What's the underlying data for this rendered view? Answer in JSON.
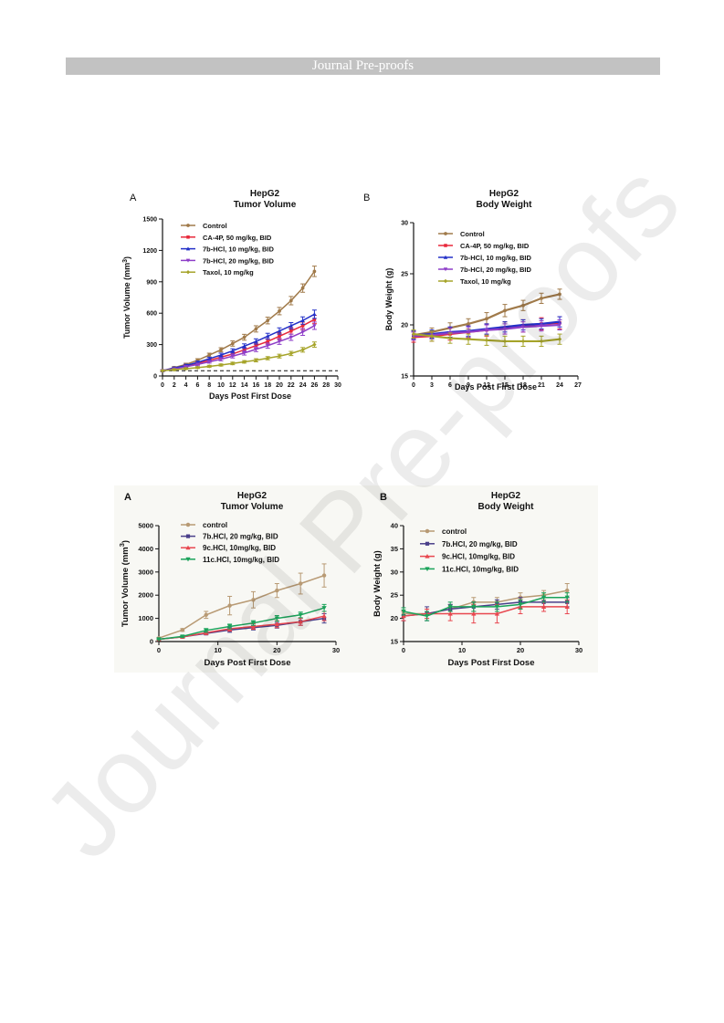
{
  "header": {
    "title": "Journal Pre-proofs"
  },
  "watermark": {
    "text": "Journal Pre-proofs"
  },
  "colors": {
    "header_bg": "#c2c2c2"
  },
  "chart_data": [
    {
      "id": "p1",
      "type": "line",
      "panel_letter": "A",
      "title": "HepG2",
      "subtitle": "Tumor Volume",
      "xlabel": "Days Post First Dose",
      "ylabel": "Tumor Volume (mm",
      "ylabel_sup": "3",
      "ylabel_end": ")",
      "xlim": [
        0,
        30
      ],
      "ylim": [
        0,
        1500
      ],
      "xticks": [
        0,
        2,
        4,
        6,
        8,
        10,
        12,
        14,
        16,
        18,
        20,
        22,
        24,
        26,
        28,
        30
      ],
      "yticks": [
        0,
        300,
        600,
        900,
        1200,
        1500
      ],
      "baseline": 50,
      "series": [
        {
          "name": "Control",
          "color": "#a07a4a",
          "marker": "circle",
          "x": [
            0,
            2,
            4,
            6,
            8,
            10,
            12,
            14,
            16,
            18,
            20,
            22,
            24,
            26
          ],
          "y": [
            50,
            80,
            110,
            150,
            200,
            250,
            310,
            370,
            450,
            530,
            620,
            720,
            840,
            1000
          ],
          "err": [
            8,
            10,
            12,
            15,
            18,
            20,
            25,
            28,
            30,
            32,
            35,
            40,
            40,
            50
          ]
        },
        {
          "name": "CA-4P, 50 mg/kg, BID",
          "color": "#e8283a",
          "marker": "square",
          "x": [
            0,
            2,
            4,
            6,
            8,
            10,
            12,
            14,
            16,
            18,
            20,
            22,
            24,
            26
          ],
          "y": [
            50,
            70,
            95,
            120,
            150,
            180,
            210,
            250,
            290,
            330,
            380,
            430,
            480,
            540
          ],
          "err": [
            8,
            10,
            12,
            12,
            15,
            15,
            20,
            22,
            25,
            25,
            30,
            30,
            35,
            40
          ]
        },
        {
          "name": "7b-HCl, 10 mg/kg, BID",
          "color": "#2330c8",
          "marker": "triangle",
          "x": [
            0,
            2,
            4,
            6,
            8,
            10,
            12,
            14,
            16,
            18,
            20,
            22,
            24,
            26
          ],
          "y": [
            50,
            75,
            100,
            130,
            165,
            200,
            240,
            285,
            330,
            380,
            430,
            480,
            530,
            590
          ],
          "err": [
            8,
            10,
            12,
            12,
            15,
            18,
            20,
            22,
            25,
            28,
            30,
            30,
            35,
            40
          ]
        },
        {
          "name": "7b-HCl, 20 mg/kg, BID",
          "color": "#8e3ec8",
          "marker": "triangle-down",
          "x": [
            0,
            2,
            4,
            6,
            8,
            10,
            12,
            14,
            16,
            18,
            20,
            22,
            24,
            26
          ],
          "y": [
            50,
            68,
            88,
            110,
            135,
            160,
            190,
            220,
            255,
            290,
            330,
            370,
            420,
            480
          ],
          "err": [
            8,
            10,
            10,
            12,
            12,
            15,
            18,
            20,
            22,
            25,
            28,
            30,
            32,
            35
          ]
        },
        {
          "name": "Taxol, 10 mg/kg",
          "color": "#a6a42a",
          "marker": "diamond",
          "x": [
            0,
            2,
            4,
            6,
            8,
            10,
            12,
            14,
            16,
            18,
            20,
            22,
            24,
            26
          ],
          "y": [
            50,
            60,
            70,
            80,
            92,
            105,
            120,
            135,
            150,
            170,
            190,
            215,
            250,
            300
          ],
          "err": [
            5,
            8,
            8,
            8,
            10,
            10,
            12,
            12,
            15,
            15,
            18,
            20,
            22,
            25
          ]
        }
      ]
    },
    {
      "id": "p2",
      "type": "line",
      "panel_letter": "B",
      "title": "HepG2",
      "subtitle": "Body Weight",
      "xlabel": "Days Post First Dose",
      "ylabel": "Body Weight (g)",
      "xlim": [
        0,
        27
      ],
      "ylim": [
        15,
        30
      ],
      "xticks": [
        0,
        3,
        6,
        9,
        12,
        15,
        18,
        21,
        24,
        27
      ],
      "yticks": [
        15,
        20,
        25,
        30
      ],
      "series": [
        {
          "name": "Control",
          "color": "#a07a4a",
          "marker": "circle",
          "x": [
            0,
            3,
            6,
            9,
            12,
            15,
            18,
            21,
            24
          ],
          "y": [
            19,
            19.3,
            19.7,
            20.1,
            20.6,
            21.4,
            21.9,
            22.6,
            23
          ],
          "err": [
            0.4,
            0.4,
            0.5,
            0.5,
            0.6,
            0.6,
            0.5,
            0.5,
            0.5
          ]
        },
        {
          "name": "CA-4P, 50 mg/kg, BID",
          "color": "#e8283a",
          "marker": "square",
          "x": [
            0,
            3,
            6,
            9,
            12,
            15,
            18,
            21,
            24
          ],
          "y": [
            18.8,
            18.9,
            19.1,
            19.3,
            19.5,
            19.7,
            19.9,
            20.1,
            20.2
          ],
          "err": [
            0.5,
            0.5,
            0.6,
            0.6,
            0.6,
            0.6,
            0.6,
            0.6,
            0.6
          ]
        },
        {
          "name": "7b-HCl, 10 mg/kg, BID",
          "color": "#2330c8",
          "marker": "triangle",
          "x": [
            0,
            3,
            6,
            9,
            12,
            15,
            18,
            21,
            24
          ],
          "y": [
            19,
            19.1,
            19.3,
            19.4,
            19.6,
            19.8,
            20,
            20.1,
            20.3
          ],
          "err": [
            0.4,
            0.4,
            0.5,
            0.5,
            0.5,
            0.5,
            0.5,
            0.5,
            0.5
          ]
        },
        {
          "name": "7b-HCl, 20 mg/kg, BID",
          "color": "#8e3ec8",
          "marker": "triangle-down",
          "x": [
            0,
            3,
            6,
            9,
            12,
            15,
            18,
            21,
            24
          ],
          "y": [
            18.9,
            19,
            19.2,
            19.3,
            19.5,
            19.6,
            19.8,
            19.9,
            20
          ],
          "err": [
            0.4,
            0.4,
            0.5,
            0.5,
            0.5,
            0.5,
            0.5,
            0.5,
            0.5
          ]
        },
        {
          "name": "Taxol, 10 mg/kg",
          "color": "#a6a42a",
          "marker": "diamond",
          "x": [
            0,
            3,
            6,
            9,
            12,
            15,
            18,
            21,
            24
          ],
          "y": [
            19.1,
            18.9,
            18.7,
            18.6,
            18.5,
            18.4,
            18.4,
            18.4,
            18.6
          ],
          "err": [
            0.4,
            0.5,
            0.5,
            0.5,
            0.5,
            0.5,
            0.5,
            0.5,
            0.5
          ]
        }
      ]
    },
    {
      "id": "p3",
      "type": "line",
      "panel_letter": "A",
      "title": "HepG2",
      "subtitle": "Tumor  Volume",
      "xlabel": "Days Post First Dose",
      "ylabel": "Tumor Volume (mm",
      "ylabel_sup": "3",
      "ylabel_end": ")",
      "xlim": [
        0,
        30
      ],
      "ylim": [
        0,
        5000
      ],
      "xticks": [
        0,
        10,
        20,
        30
      ],
      "yticks": [
        0,
        1000,
        2000,
        3000,
        4000,
        5000
      ],
      "series": [
        {
          "name": "control",
          "color": "#b89a74",
          "marker": "circle",
          "x": [
            0,
            4,
            8,
            12,
            16,
            20,
            24,
            28
          ],
          "y": [
            150,
            500,
            1150,
            1550,
            1800,
            2200,
            2500,
            2850
          ],
          "err": [
            30,
            60,
            150,
            400,
            350,
            300,
            450,
            500
          ]
        },
        {
          "name": "7b.HCl, 20 mg/kg, BID",
          "color": "#4a3f8a",
          "marker": "square",
          "x": [
            0,
            4,
            8,
            12,
            16,
            20,
            24,
            28
          ],
          "y": [
            100,
            200,
            350,
            500,
            600,
            700,
            850,
            1000
          ],
          "err": [
            20,
            40,
            60,
            100,
            100,
            120,
            150,
            200
          ]
        },
        {
          "name": "9c.HCl, 10mg/kg, BID",
          "color": "#e8474f",
          "marker": "triangle",
          "x": [
            0,
            4,
            8,
            12,
            16,
            20,
            24,
            28
          ],
          "y": [
            100,
            200,
            380,
            550,
            650,
            750,
            850,
            1100
          ],
          "err": [
            20,
            40,
            80,
            100,
            120,
            150,
            150,
            200
          ]
        },
        {
          "name": "11c.HCl, 10mg/kg, BID",
          "color": "#1ba35a",
          "marker": "triangle-down",
          "x": [
            0,
            4,
            8,
            12,
            16,
            20,
            24,
            28
          ],
          "y": [
            100,
            220,
            480,
            650,
            800,
            1000,
            1150,
            1450
          ],
          "err": [
            20,
            40,
            80,
            100,
            100,
            120,
            120,
            150
          ]
        }
      ]
    },
    {
      "id": "p4",
      "type": "line",
      "panel_letter": "B",
      "title": "HepG2",
      "subtitle": "Body Weight",
      "xlabel": "Days Post First Dose",
      "ylabel": "Body Weight (g)",
      "xlim": [
        0,
        30
      ],
      "ylim": [
        15,
        40
      ],
      "xticks": [
        0,
        10,
        20,
        30
      ],
      "yticks": [
        15,
        20,
        25,
        30,
        35,
        40
      ],
      "series": [
        {
          "name": "control",
          "color": "#b89a74",
          "marker": "circle",
          "x": [
            0,
            4,
            8,
            12,
            16,
            20,
            24,
            28
          ],
          "y": [
            21,
            21,
            22,
            23.5,
            23.5,
            24.5,
            25,
            26
          ],
          "err": [
            0.8,
            1,
            1,
            1,
            1,
            1,
            1,
            1.5
          ]
        },
        {
          "name": "7b.HCl, 20 mg/kg, BID",
          "color": "#4a3f8a",
          "marker": "square",
          "x": [
            0,
            4,
            8,
            12,
            16,
            20,
            24,
            28
          ],
          "y": [
            20.5,
            21,
            22,
            22.5,
            23,
            23.5,
            23.5,
            23.5
          ],
          "err": [
            1,
            1.5,
            1,
            1,
            1,
            1,
            1,
            1
          ]
        },
        {
          "name": "9c.HCl, 10mg/kg, BID",
          "color": "#e8474f",
          "marker": "triangle",
          "x": [
            0,
            4,
            8,
            12,
            16,
            20,
            24,
            28
          ],
          "y": [
            20.5,
            21,
            21,
            21,
            21,
            22.5,
            22.5,
            22.5
          ],
          "err": [
            1,
            1,
            1.5,
            2,
            2,
            1.5,
            1,
            1.5
          ]
        },
        {
          "name": "11c.HCl, 10mg/kg, BID",
          "color": "#1ba35a",
          "marker": "triangle-down",
          "x": [
            0,
            4,
            8,
            12,
            16,
            20,
            24,
            28
          ],
          "y": [
            21.5,
            20.5,
            22.5,
            22.5,
            22.5,
            23,
            24.5,
            24.5
          ],
          "err": [
            0.8,
            1,
            1,
            1,
            1,
            1,
            1,
            1
          ]
        }
      ]
    }
  ]
}
